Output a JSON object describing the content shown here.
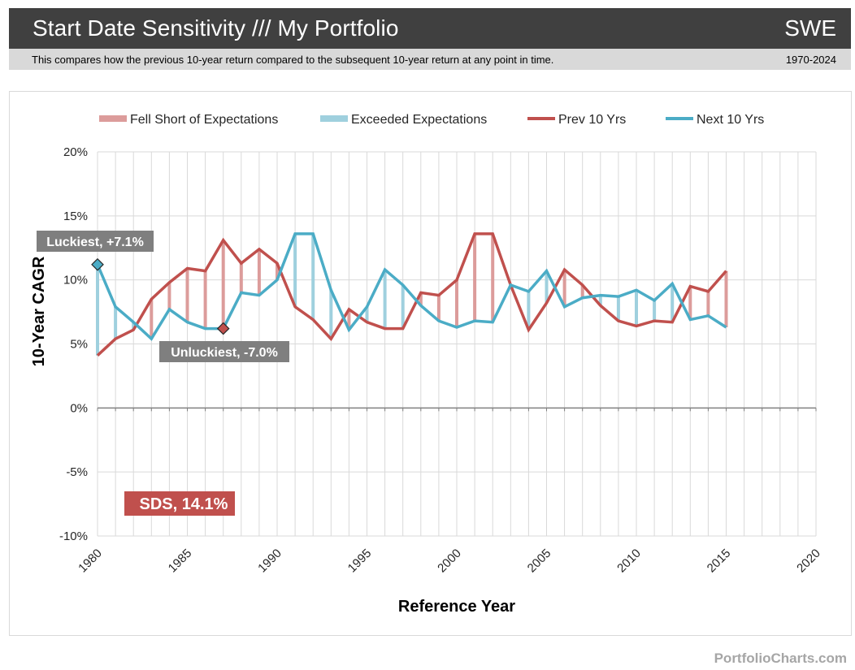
{
  "header": {
    "title": "Start Date Sensitivity /// My Portfolio",
    "code": "SWE",
    "description": "This compares how the previous 10-year return compared to the subsequent 10-year return at any point in time.",
    "date_range": "1970-2024"
  },
  "footer": {
    "brand": "PortfolioCharts.com"
  },
  "colors": {
    "header_bg": "#404040",
    "subheader_bg": "#d9d9d9",
    "prev": "#c0504d",
    "next": "#4bacc6",
    "fell_short": "#dc9c9b",
    "exceeded": "#9fd0de",
    "annotation_bg": "#7f7f7f",
    "sds_bg": "#c0504d",
    "grid": "#d9d9d9"
  },
  "chart_data": {
    "type": "line",
    "title": "Start Date Sensitivity",
    "xlabel": "Reference Year",
    "ylabel": "10-Year CAGR",
    "xlim": [
      1980,
      2020
    ],
    "ylim": [
      -10,
      20
    ],
    "x_ticks": [
      1980,
      1985,
      1990,
      1995,
      2000,
      2005,
      2010,
      2015,
      2020
    ],
    "y_ticks": [
      -10,
      -5,
      0,
      5,
      10,
      15,
      20
    ],
    "y_tick_labels": [
      "-10%",
      "-5%",
      "0%",
      "5%",
      "10%",
      "15%",
      "20%"
    ],
    "grid": true,
    "legend_position": "top",
    "legend": [
      {
        "label": "Fell Short of Expectations",
        "kind": "bar",
        "color_key": "fell_short"
      },
      {
        "label": "Exceeded Expectations",
        "kind": "bar",
        "color_key": "exceeded"
      },
      {
        "label": "Prev 10 Yrs",
        "kind": "line",
        "color_key": "prev"
      },
      {
        "label": "Next 10 Yrs",
        "kind": "line",
        "color_key": "next"
      }
    ],
    "x": [
      1980,
      1981,
      1982,
      1983,
      1984,
      1985,
      1986,
      1987,
      1988,
      1989,
      1990,
      1991,
      1992,
      1993,
      1994,
      1995,
      1996,
      1997,
      1998,
      1999,
      2000,
      2001,
      2002,
      2003,
      2004,
      2005,
      2006,
      2007,
      2008,
      2009,
      2010,
      2011,
      2012,
      2013,
      2014,
      2015
    ],
    "series": [
      {
        "name": "Prev 10 Yrs",
        "values": [
          4.1,
          5.4,
          6.1,
          8.5,
          9.8,
          10.9,
          10.7,
          13.1,
          11.3,
          12.4,
          11.3,
          7.9,
          6.9,
          5.4,
          7.7,
          6.7,
          6.2,
          6.2,
          9.0,
          8.8,
          10.0,
          13.6,
          13.6,
          9.6,
          6.1,
          8.2,
          10.8,
          9.6,
          8.0,
          6.8,
          6.4,
          6.8,
          6.7,
          9.5,
          9.1,
          10.7
        ]
      },
      {
        "name": "Next 10 Yrs",
        "values": [
          11.2,
          7.9,
          6.7,
          5.4,
          7.7,
          6.7,
          6.2,
          6.2,
          9.0,
          8.8,
          10.0,
          13.6,
          13.6,
          9.2,
          6.1,
          7.9,
          10.8,
          9.6,
          8.0,
          6.8,
          6.3,
          6.8,
          6.7,
          9.6,
          9.1,
          10.7,
          7.9,
          8.6,
          8.8,
          8.7,
          9.2,
          8.4,
          9.7,
          6.9,
          7.2,
          6.3
        ]
      }
    ],
    "annotations": [
      {
        "label": "Luckiest, +7.1%",
        "year": 1980,
        "series": "Next 10 Yrs",
        "value": 11.2
      },
      {
        "label": "Unluckiest, -7.0%",
        "year": 1987,
        "series": "Next 10 Yrs",
        "value": 6.2
      }
    ],
    "sds_label": "SDS, 14.1%"
  }
}
